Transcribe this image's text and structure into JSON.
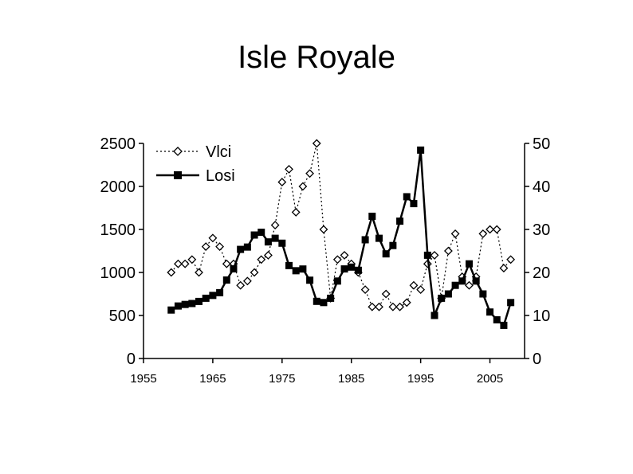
{
  "title": "Isle Royale",
  "chart_data": {
    "type": "line",
    "title": "Isle Royale",
    "xlabel": "",
    "ylabel": "",
    "y2label": "",
    "xlim": [
      1955,
      2010
    ],
    "ylim": [
      0,
      2500
    ],
    "y2lim": [
      0,
      50
    ],
    "x_ticks": [
      "1955",
      "1965",
      "1975",
      "1985",
      "1995",
      "2005"
    ],
    "y_ticks": [
      "0",
      "500",
      "1000",
      "1500",
      "2000",
      "2500"
    ],
    "y2_ticks": [
      "0",
      "10",
      "20",
      "30",
      "40",
      "50"
    ],
    "grid": false,
    "legend_position": "top-left",
    "series": [
      {
        "name": "Vlci",
        "axis": "right",
        "style": "dotted-diamond",
        "x": [
          1959,
          1960,
          1961,
          1962,
          1963,
          1964,
          1965,
          1966,
          1967,
          1968,
          1969,
          1970,
          1971,
          1972,
          1973,
          1974,
          1975,
          1976,
          1977,
          1978,
          1979,
          1980,
          1981,
          1982,
          1983,
          1984,
          1985,
          1986,
          1987,
          1988,
          1989,
          1990,
          1991,
          1992,
          1993,
          1994,
          1995,
          1996,
          1997,
          1998,
          1999,
          2000,
          2001,
          2002,
          2003,
          2004,
          2005,
          2006,
          2007,
          2008
        ],
        "values": [
          20,
          22,
          22,
          23,
          20,
          26,
          28,
          26,
          22,
          22,
          17,
          18,
          20,
          23,
          24,
          31,
          41,
          44,
          34,
          40,
          43,
          50,
          30,
          14,
          23,
          24,
          22,
          20,
          16,
          12,
          12,
          15,
          12,
          12,
          13,
          17,
          16,
          22,
          24,
          14,
          25,
          29,
          19,
          17,
          19,
          29,
          30,
          30,
          21,
          23
        ]
      },
      {
        "name": "Losi",
        "axis": "left",
        "style": "solid-square",
        "x": [
          1959,
          1960,
          1961,
          1962,
          1963,
          1964,
          1965,
          1966,
          1967,
          1968,
          1969,
          1970,
          1971,
          1972,
          1973,
          1974,
          1975,
          1976,
          1977,
          1978,
          1979,
          1980,
          1981,
          1982,
          1983,
          1984,
          1985,
          1986,
          1987,
          1988,
          1989,
          1990,
          1991,
          1992,
          1993,
          1994,
          1995,
          1996,
          1997,
          1998,
          1999,
          2000,
          2001,
          2002,
          2003,
          2004,
          2005,
          2006,
          2007,
          2008
        ],
        "values": [
          563,
          610,
          628,
          639,
          663,
          700,
          733,
          765,
          912,
          1042,
          1268,
          1295,
          1435,
          1467,
          1355,
          1397,
          1340,
          1080,
          1020,
          1040,
          910,
          664,
          650,
          700,
          900,
          1041,
          1062,
          1025,
          1380,
          1653,
          1397,
          1216,
          1313,
          1596,
          1880,
          1800,
          2422,
          1200,
          500,
          700,
          750,
          850,
          900,
          1100,
          900,
          750,
          540,
          450,
          385,
          650
        ]
      }
    ]
  }
}
